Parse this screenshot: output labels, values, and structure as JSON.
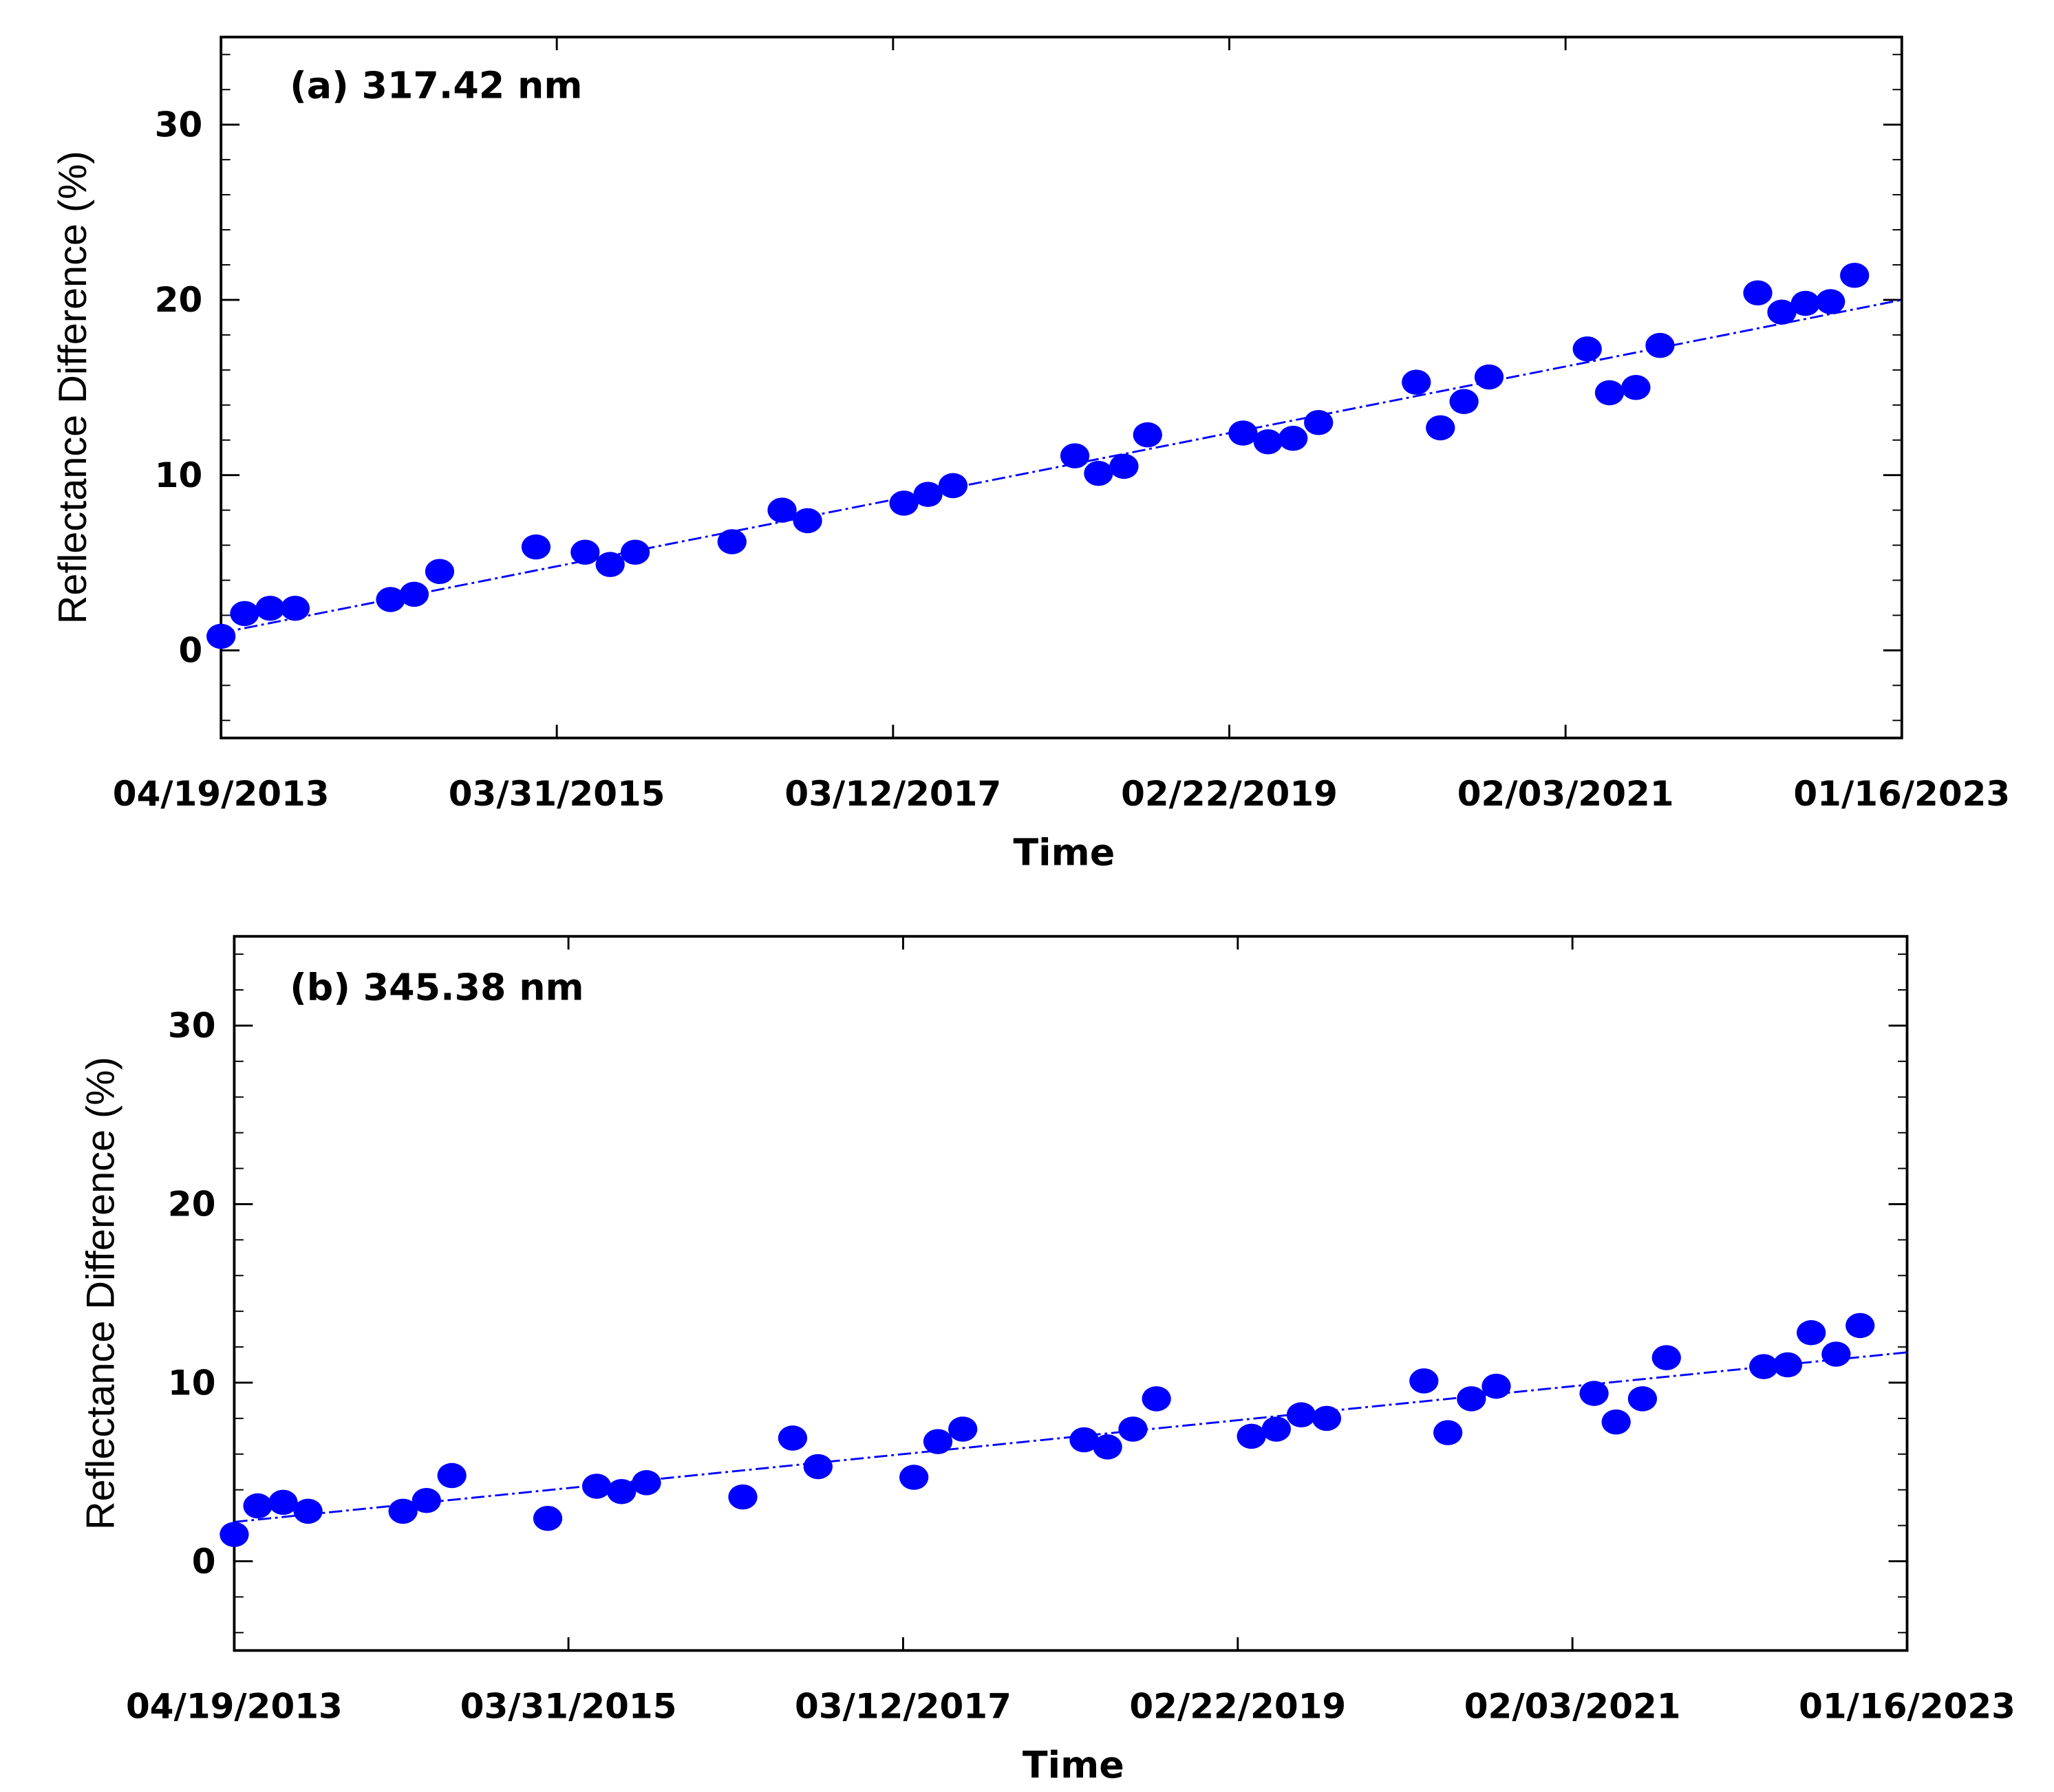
{
  "chart_data": [
    {
      "type": "scatter",
      "title": "(a) 317.42 nm",
      "xlabel": "Time",
      "ylabel": "Reflectance Difference (%)",
      "x": [
        "04/19/2013",
        "06/08/2013",
        "08/01/2013",
        "09/23/2013",
        "04/13/2014",
        "06/02/2014",
        "07/26/2014",
        "02/15/2015",
        "05/30/2015",
        "07/22/2015",
        "09/13/2015",
        "04/05/2016",
        "07/20/2016",
        "09/12/2016",
        "04/04/2017",
        "05/25/2017",
        "07/17/2017",
        "04/01/2018",
        "05/21/2018",
        "07/14/2018",
        "09/02/2018",
        "03/23/2019",
        "05/15/2019",
        "07/07/2019",
        "08/30/2019",
        "03/24/2020",
        "05/14/2020",
        "07/03/2020",
        "08/25/2020",
        "03/21/2021",
        "05/07/2021",
        "07/02/2021",
        "08/22/2021",
        "03/17/2022",
        "05/07/2022",
        "06/26/2022",
        "08/18/2022",
        "10/08/2022"
      ],
      "values": [
        0.8,
        2.1,
        2.4,
        2.4,
        2.9,
        3.2,
        4.5,
        5.9,
        5.6,
        4.9,
        5.6,
        6.2,
        8.0,
        7.4,
        8.4,
        8.9,
        9.4,
        11.1,
        10.1,
        10.5,
        12.3,
        12.4,
        11.9,
        12.1,
        13.0,
        15.3,
        12.7,
        14.2,
        15.6,
        17.2,
        14.7,
        15.0,
        17.4,
        20.4,
        19.3,
        19.8,
        19.9,
        21.4
      ],
      "color": "#0000ff",
      "trend": {
        "x": [
          "04/19/2013",
          "01/16/2023"
        ],
        "values": [
          1.0,
          20.0
        ],
        "color": "#0000ff"
      },
      "xlim": [
        "04/19/2013",
        "01/16/2023"
      ],
      "xticks": [
        "04/19/2013",
        "03/31/2015",
        "03/12/2017",
        "02/22/2019",
        "02/03/2021",
        "01/16/2023"
      ],
      "ylim": [
        -5,
        35
      ],
      "yticks": [
        0,
        10,
        20,
        30
      ],
      "yminorticks": [
        -4,
        -2,
        2,
        4,
        6,
        8,
        12,
        14,
        16,
        18,
        22,
        24,
        26,
        28,
        32,
        34
      ]
    },
    {
      "type": "scatter",
      "title": "(b) 345.38 nm",
      "xlabel": "Time",
      "ylabel": "Reflectance Difference (%)",
      "x": [
        "04/19/2013",
        "06/08/2013",
        "08/01/2013",
        "09/23/2013",
        "04/13/2014",
        "06/02/2014",
        "07/26/2014",
        "02/15/2015",
        "05/30/2015",
        "07/22/2015",
        "09/13/2015",
        "04/05/2016",
        "07/20/2016",
        "09/12/2016",
        "04/04/2017",
        "05/25/2017",
        "07/17/2017",
        "04/01/2018",
        "05/21/2018",
        "07/14/2018",
        "09/02/2018",
        "03/23/2019",
        "05/15/2019",
        "07/07/2019",
        "08/30/2019",
        "03/24/2020",
        "05/14/2020",
        "07/03/2020",
        "08/25/2020",
        "03/21/2021",
        "05/07/2021",
        "07/02/2021",
        "08/22/2021",
        "03/17/2022",
        "05/07/2022",
        "06/26/2022",
        "08/18/2022",
        "10/08/2022"
      ],
      "values": [
        1.5,
        3.1,
        3.3,
        2.8,
        2.8,
        3.4,
        4.8,
        2.4,
        4.2,
        3.9,
        4.4,
        3.6,
        6.9,
        5.3,
        4.7,
        6.7,
        7.4,
        6.8,
        6.4,
        7.4,
        9.1,
        7.0,
        7.4,
        8.2,
        8.0,
        10.1,
        7.2,
        9.1,
        9.8,
        9.4,
        7.8,
        9.1,
        11.4,
        10.9,
        11.0,
        12.8,
        11.6,
        13.2
      ],
      "color": "#0000ff",
      "trend": {
        "x": [
          "04/19/2013",
          "01/16/2023"
        ],
        "values": [
          2.2,
          11.7
        ],
        "color": "#0000ff"
      },
      "xlim": [
        "04/19/2013",
        "01/16/2023"
      ],
      "xticks": [
        "04/19/2013",
        "03/31/2015",
        "03/12/2017",
        "02/22/2019",
        "02/03/2021",
        "01/16/2023"
      ],
      "ylim": [
        -5,
        35
      ],
      "yticks": [
        0,
        10,
        20,
        30
      ],
      "yminorticks": [
        -4,
        -2,
        2,
        4,
        6,
        8,
        12,
        14,
        16,
        18,
        22,
        24,
        26,
        28,
        32,
        34
      ]
    }
  ]
}
